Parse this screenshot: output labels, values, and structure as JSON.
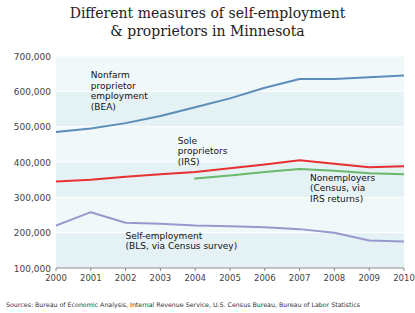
{
  "chart_data": {
    "type": "line",
    "title": "Different measures of self-employment\n& proprietors in Minnesota",
    "x": [
      2000,
      2001,
      2002,
      2003,
      2004,
      2005,
      2006,
      2007,
      2008,
      2009,
      2010
    ],
    "series": [
      {
        "color": "#5b8db8",
        "values": [
          485000,
          495000,
          510000,
          530000,
          555000,
          580000,
          610000,
          635000,
          635000,
          640000,
          645000
        ]
      },
      {
        "color": "#e83030",
        "values": [
          345000,
          350000,
          358000,
          365000,
          372000,
          382000,
          393000,
          405000,
          395000,
          385000,
          388000
        ]
      },
      {
        "color": "#6ab86a",
        "values": [
          null,
          null,
          null,
          null,
          353000,
          362000,
          372000,
          380000,
          375000,
          368000,
          365000
        ]
      },
      {
        "color": "#9898cc",
        "values": [
          220000,
          258000,
          228000,
          225000,
          220000,
          218000,
          215000,
          210000,
          200000,
          178000,
          175000
        ]
      }
    ],
    "xlim": [
      2000,
      2010
    ],
    "xticks": [
      2000,
      2001,
      2002,
      2003,
      2004,
      2005,
      2006,
      2007,
      2008,
      2009,
      2010
    ],
    "ylim": [
      100000,
      700000
    ],
    "yticks": [
      {
        "value": 100000,
        "label": "100,000"
      },
      {
        "value": 200000,
        "label": "200,000"
      },
      {
        "value": 300000,
        "label": "300,000"
      },
      {
        "value": 400000,
        "label": "400,000"
      },
      {
        "value": 500000,
        "label": "500,000"
      },
      {
        "value": 600000,
        "label": "600,000"
      },
      {
        "value": 700000,
        "label": "700,000"
      }
    ],
    "grid": true,
    "annotations": [
      {
        "text": "Nonfarm\nproprietor\nemployment\n(BEA)",
        "x": 2001.0,
        "y": 660000
      },
      {
        "text": "Sole\nproprietors\n(IRS)",
        "x": 2003.5,
        "y": 475000
      },
      {
        "text": "Nonemployers\n(Census, via\nIRS returns)",
        "x": 2007.3,
        "y": 370000
      },
      {
        "text": "Self-employment\n(BLS, via Census survey)",
        "x": 2002.0,
        "y": 205000
      }
    ],
    "source": "Sources: Bureau of Economic Analysis, Internal Revenue Service, U.S. Census Bureau, Bureau of Labor Statistics"
  }
}
